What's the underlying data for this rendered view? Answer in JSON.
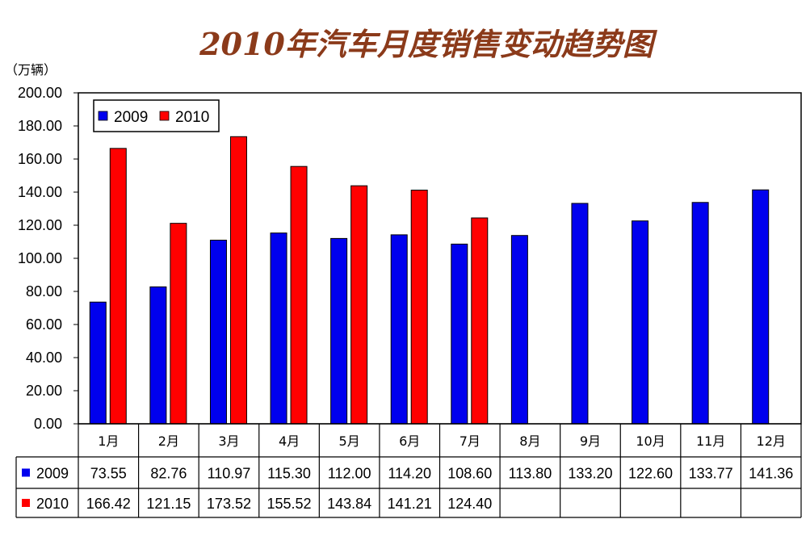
{
  "chart_data": {
    "type": "bar",
    "title": "2010年汽车月度销售变动趋势图",
    "ylabel": "（万辆）",
    "xlabel": "",
    "categories": [
      "1月",
      "2月",
      "3月",
      "4月",
      "5月",
      "6月",
      "7月",
      "8月",
      "9月",
      "10月",
      "11月",
      "12月"
    ],
    "ylim": [
      0,
      200
    ],
    "ytick_step": 20,
    "ytick_labels": [
      "0.00",
      "20.00",
      "40.00",
      "60.00",
      "80.00",
      "100.00",
      "120.00",
      "140.00",
      "160.00",
      "180.00",
      "200.00"
    ],
    "grid": false,
    "legend_position": "top-left",
    "series": [
      {
        "name": "2009",
        "color": "#0000ee",
        "values": [
          73.55,
          82.76,
          110.97,
          115.3,
          112.0,
          114.2,
          108.6,
          113.8,
          133.2,
          122.6,
          133.77,
          141.36
        ],
        "labels": [
          "73.55",
          "82.76",
          "110.97",
          "115.30",
          "112.00",
          "114.20",
          "108.60",
          "113.80",
          "133.20",
          "122.60",
          "133.77",
          "141.36"
        ]
      },
      {
        "name": "2010",
        "color": "#ff0000",
        "values": [
          166.42,
          121.15,
          173.52,
          155.52,
          143.84,
          141.21,
          124.4,
          null,
          null,
          null,
          null,
          null
        ],
        "labels": [
          "166.42",
          "121.15",
          "173.52",
          "155.52",
          "143.84",
          "141.21",
          "124.40",
          "",
          "",
          "",
          "",
          ""
        ]
      }
    ],
    "colors": {
      "title": "#8b3a1a",
      "series_2009": "#0000ee",
      "series_2010": "#ff0000"
    }
  }
}
